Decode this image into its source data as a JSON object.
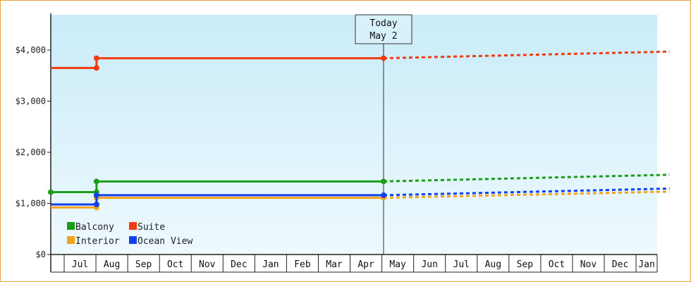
{
  "chart_data": {
    "type": "line",
    "title": "",
    "xlabel": "",
    "ylabel": "",
    "ylim": [
      0,
      4600
    ],
    "yticks": [
      {
        "value": 0,
        "label": "$0"
      },
      {
        "value": 1000,
        "label": "$1,000"
      },
      {
        "value": 2000,
        "label": "$2,000"
      },
      {
        "value": 3000,
        "label": "$3,000"
      },
      {
        "value": 4000,
        "label": "$4,000"
      }
    ],
    "months": [
      "",
      "Jul",
      "Aug",
      "Sep",
      "Oct",
      "Nov",
      "Dec",
      "Jan",
      "Feb",
      "Mar",
      "Apr",
      "May",
      "Jun",
      "Jul",
      "Aug",
      "Sep",
      "Oct",
      "Nov",
      "Dec",
      "Jan"
    ],
    "x_range": [
      "2024-06-01",
      "2025-01-31"
    ],
    "today": {
      "line1": "Today",
      "line2": "May 2",
      "date": "2024-05-02"
    },
    "grid": false,
    "legend_position": "bottom-left",
    "series": [
      {
        "name": "Balcony",
        "color": "#1a9e1a",
        "history": [
          [
            "2023-06-01",
            1220
          ],
          [
            "2023-08-01",
            1220
          ],
          [
            "2023-08-01",
            1430
          ],
          [
            "2024-05-02",
            1430
          ]
        ],
        "markers": [
          [
            "2023-06-01",
            1220
          ],
          [
            "2023-08-01",
            1220
          ],
          [
            "2023-08-01",
            1430
          ],
          [
            "2024-05-02",
            1430
          ]
        ],
        "forecast": [
          [
            "2024-05-02",
            1430
          ],
          [
            "2025-01-31",
            1560
          ]
        ]
      },
      {
        "name": "Suite",
        "color": "#f03c10",
        "history": [
          [
            "2023-06-01",
            3650
          ],
          [
            "2023-08-01",
            3650
          ],
          [
            "2023-08-01",
            3840
          ],
          [
            "2024-05-02",
            3840
          ]
        ],
        "markers": [
          [
            "2023-08-01",
            3650
          ],
          [
            "2023-08-01",
            3840
          ],
          [
            "2024-05-02",
            3840
          ]
        ],
        "forecast": [
          [
            "2024-05-02",
            3840
          ],
          [
            "2025-01-31",
            3970
          ]
        ]
      },
      {
        "name": "Interior",
        "color": "#f4a41c",
        "history": [
          [
            "2023-06-01",
            920
          ],
          [
            "2023-08-01",
            920
          ],
          [
            "2023-08-01",
            1110
          ],
          [
            "2024-05-02",
            1110
          ]
        ],
        "markers": [
          [
            "2023-08-01",
            920
          ],
          [
            "2023-08-01",
            1110
          ],
          [
            "2024-05-02",
            1110
          ]
        ],
        "forecast": [
          [
            "2024-05-02",
            1110
          ],
          [
            "2025-01-31",
            1230
          ]
        ]
      },
      {
        "name": "Ocean View",
        "color": "#1040f0",
        "history": [
          [
            "2023-06-01",
            980
          ],
          [
            "2023-08-01",
            980
          ],
          [
            "2023-08-01",
            1160
          ],
          [
            "2024-05-02",
            1160
          ]
        ],
        "markers": [
          [
            "2023-08-01",
            980
          ],
          [
            "2023-08-01",
            1160
          ],
          [
            "2024-05-02",
            1160
          ]
        ],
        "forecast": [
          [
            "2024-05-02",
            1160
          ],
          [
            "2025-01-31",
            1290
          ]
        ]
      }
    ]
  }
}
